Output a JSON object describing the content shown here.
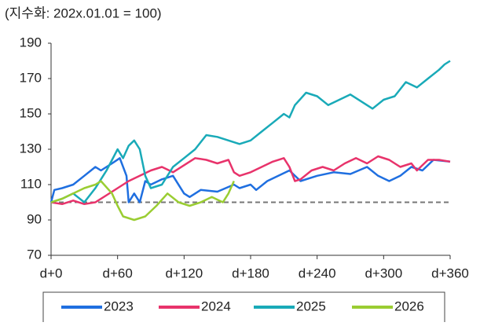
{
  "chart_data": {
    "type": "line",
    "title": "(지수화: 202x.01.01 = 100)",
    "xlim": [
      0,
      360
    ],
    "ylim": [
      70,
      190
    ],
    "xticks": [
      {
        "value": 0,
        "label": "d+0"
      },
      {
        "value": 60,
        "label": "d+60"
      },
      {
        "value": 120,
        "label": "d+120"
      },
      {
        "value": 180,
        "label": "d+180"
      },
      {
        "value": 240,
        "label": "d+240"
      },
      {
        "value": 300,
        "label": "d+300"
      },
      {
        "value": 360,
        "label": "d+360"
      }
    ],
    "yticks": [
      70,
      90,
      110,
      130,
      150,
      170,
      190
    ],
    "reference_line": 100,
    "series": [
      {
        "name": "2023",
        "color": "#1f6fe0",
        "x": [
          0,
          3,
          10,
          20,
          30,
          40,
          45,
          55,
          62,
          68,
          70,
          75,
          80,
          85,
          90,
          100,
          110,
          120,
          125,
          135,
          150,
          165,
          170,
          180,
          185,
          195,
          205,
          215,
          225,
          240,
          255,
          270,
          285,
          295,
          305,
          315,
          325,
          335,
          345,
          360
        ],
        "values": [
          100,
          107,
          108,
          110,
          115,
          120,
          118,
          122,
          125,
          115,
          100,
          105,
          100,
          112,
          110,
          113,
          115,
          105,
          103,
          107,
          106,
          110,
          108,
          110,
          107,
          112,
          115,
          118,
          112,
          115,
          117,
          116,
          120,
          115,
          112,
          115,
          120,
          118,
          124,
          123
        ]
      },
      {
        "name": "2024",
        "color": "#e8336b",
        "x": [
          0,
          10,
          20,
          30,
          40,
          50,
          60,
          70,
          80,
          90,
          100,
          110,
          120,
          130,
          140,
          150,
          160,
          165,
          170,
          180,
          190,
          200,
          210,
          215,
          220,
          225,
          235,
          245,
          255,
          265,
          275,
          285,
          295,
          305,
          315,
          325,
          330,
          340,
          350,
          360
        ],
        "values": [
          100,
          99,
          101,
          99,
          100,
          104,
          108,
          112,
          115,
          118,
          120,
          117,
          121,
          125,
          124,
          122,
          124,
          117,
          115,
          117,
          120,
          123,
          125,
          120,
          112,
          113,
          118,
          120,
          118,
          122,
          125,
          122,
          126,
          124,
          120,
          122,
          118,
          124,
          124,
          123
        ]
      },
      {
        "name": "2025",
        "color": "#19aab8",
        "x": [
          0,
          10,
          20,
          30,
          40,
          50,
          60,
          65,
          70,
          75,
          80,
          85,
          90,
          100,
          110,
          120,
          130,
          140,
          150,
          160,
          170,
          180,
          190,
          200,
          210,
          215,
          220,
          230,
          240,
          250,
          260,
          270,
          280,
          290,
          300,
          310,
          320,
          330,
          340,
          350,
          355,
          360
        ],
        "values": [
          100,
          102,
          105,
          100,
          108,
          118,
          130,
          125,
          132,
          135,
          130,
          115,
          108,
          110,
          120,
          125,
          130,
          138,
          137,
          135,
          133,
          135,
          140,
          145,
          150,
          148,
          155,
          162,
          160,
          155,
          158,
          161,
          157,
          153,
          158,
          160,
          168,
          165,
          170,
          175,
          178,
          180
        ]
      },
      {
        "name": "2026",
        "color": "#9acd32",
        "x": [
          0,
          10,
          20,
          30,
          40,
          45,
          55,
          60,
          65,
          75,
          85,
          95,
          105,
          115,
          125,
          135,
          145,
          155,
          160,
          165
        ],
        "values": [
          100,
          102,
          105,
          108,
          110,
          112,
          105,
          98,
          92,
          90,
          92,
          98,
          105,
          100,
          98,
          100,
          103,
          100,
          105,
          112
        ]
      }
    ]
  }
}
